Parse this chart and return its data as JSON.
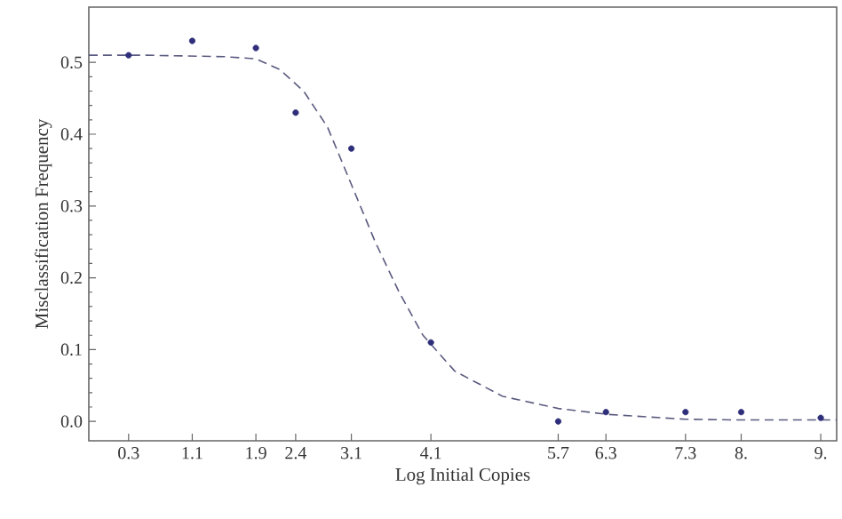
{
  "chart_data": {
    "type": "scatter",
    "xlabel": "Log Initial Copies",
    "ylabel": "Misclassification Frequency",
    "xlim": [
      -0.2,
      9.2
    ],
    "ylim": [
      -0.027,
      0.577
    ],
    "xticks": [
      0.3,
      1.1,
      1.9,
      2.4,
      3.1,
      4.1,
      5.7,
      6.3,
      7.3,
      {
        "value": 8,
        "label": "8."
      },
      {
        "value": 9,
        "label": "9."
      }
    ],
    "yticks": [
      {
        "value": 0,
        "label": "0.0"
      },
      0.1,
      0.2,
      0.3,
      0.4,
      0.5
    ],
    "grid": false,
    "series": [
      {
        "marker": "circle",
        "color": "#2e2e7a",
        "x": [
          0.3,
          1.1,
          1.9,
          2.4,
          3.1,
          4.1,
          5.7,
          6.3,
          7.3,
          8,
          9
        ],
        "values": [
          0.51,
          0.53,
          0.52,
          0.43,
          0.38,
          0.11,
          0.0,
          0.013,
          0.013,
          0.013,
          0.005
        ]
      },
      {
        "type": "line",
        "marker": "none",
        "line_style": "dashed",
        "color": "#5a5a80",
        "x": [
          -0.2,
          0.5,
          1.5,
          1.9,
          2.2,
          2.5,
          2.8,
          3.1,
          3.4,
          3.7,
          4.0,
          4.4,
          5.0,
          5.7,
          6.3,
          7.3,
          8,
          9.2
        ],
        "values": [
          0.51,
          0.51,
          0.508,
          0.505,
          0.49,
          0.46,
          0.41,
          0.33,
          0.25,
          0.18,
          0.12,
          0.07,
          0.035,
          0.018,
          0.01,
          0.003,
          0.002,
          0.002
        ]
      }
    ]
  }
}
